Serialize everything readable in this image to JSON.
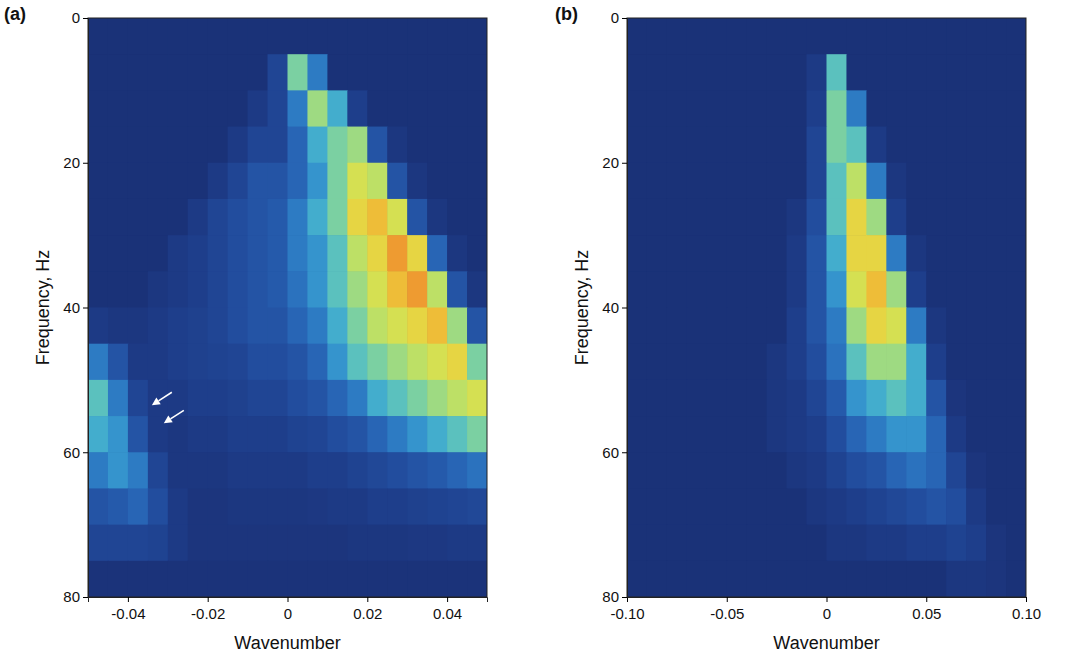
{
  "chart_data": [
    {
      "type": "heatmap",
      "panel_label": "(a)",
      "x_label": "Wavenumber",
      "y_label": "Frequency, Hz",
      "xlim": [
        -0.05,
        0.05
      ],
      "ylim": [
        0,
        80
      ],
      "xticks": [
        -0.04,
        -0.02,
        0,
        0.02,
        0.04
      ],
      "yticks": [
        0,
        20,
        40,
        60,
        80
      ],
      "x_edges": [
        -0.05,
        -0.045,
        -0.04,
        -0.035,
        -0.03,
        -0.025,
        -0.02,
        -0.015,
        -0.01,
        -0.005,
        0,
        0.005,
        0.01,
        0.015,
        0.02,
        0.025,
        0.03,
        0.035,
        0.04,
        0.045,
        0.05
      ],
      "y_edges": [
        0,
        5,
        10,
        15,
        20,
        25,
        30,
        35,
        40,
        45,
        50,
        55,
        60,
        65,
        70,
        75,
        80
      ],
      "zlim": [
        0,
        1
      ],
      "z": [
        [
          0.05,
          0.05,
          0.05,
          0.05,
          0.05,
          0.05,
          0.05,
          0.05,
          0.05,
          0.05,
          0.05,
          0.05,
          0.05,
          0.05,
          0.05,
          0.05,
          0.05,
          0.05,
          0.05,
          0.05
        ],
        [
          0.05,
          0.05,
          0.05,
          0.05,
          0.05,
          0.05,
          0.05,
          0.05,
          0.05,
          0.15,
          0.5,
          0.3,
          0.05,
          0.05,
          0.05,
          0.05,
          0.05,
          0.05,
          0.05,
          0.05
        ],
        [
          0.05,
          0.05,
          0.05,
          0.05,
          0.05,
          0.05,
          0.05,
          0.05,
          0.1,
          0.15,
          0.3,
          0.55,
          0.4,
          0.12,
          0.05,
          0.05,
          0.05,
          0.05,
          0.05,
          0.05
        ],
        [
          0.05,
          0.05,
          0.05,
          0.05,
          0.05,
          0.05,
          0.05,
          0.1,
          0.15,
          0.15,
          0.25,
          0.4,
          0.5,
          0.55,
          0.2,
          0.08,
          0.05,
          0.05,
          0.05,
          0.05
        ],
        [
          0.05,
          0.05,
          0.05,
          0.05,
          0.05,
          0.05,
          0.1,
          0.15,
          0.2,
          0.2,
          0.25,
          0.35,
          0.5,
          0.65,
          0.6,
          0.2,
          0.08,
          0.05,
          0.05,
          0.05
        ],
        [
          0.05,
          0.05,
          0.05,
          0.05,
          0.05,
          0.1,
          0.15,
          0.18,
          0.2,
          0.22,
          0.3,
          0.4,
          0.5,
          0.7,
          0.75,
          0.65,
          0.2,
          0.08,
          0.05,
          0.05
        ],
        [
          0.05,
          0.05,
          0.05,
          0.05,
          0.1,
          0.12,
          0.15,
          0.18,
          0.2,
          0.22,
          0.3,
          0.35,
          0.45,
          0.6,
          0.7,
          0.8,
          0.7,
          0.25,
          0.08,
          0.05
        ],
        [
          0.05,
          0.05,
          0.05,
          0.08,
          0.1,
          0.12,
          0.15,
          0.18,
          0.2,
          0.22,
          0.28,
          0.35,
          0.45,
          0.55,
          0.65,
          0.75,
          0.8,
          0.6,
          0.2,
          0.08
        ],
        [
          0.1,
          0.08,
          0.08,
          0.1,
          0.12,
          0.13,
          0.15,
          0.18,
          0.2,
          0.2,
          0.25,
          0.3,
          0.4,
          0.5,
          0.6,
          0.65,
          0.7,
          0.75,
          0.55,
          0.2
        ],
        [
          0.3,
          0.2,
          0.1,
          0.1,
          0.12,
          0.13,
          0.14,
          0.15,
          0.18,
          0.18,
          0.2,
          0.25,
          0.35,
          0.45,
          0.5,
          0.55,
          0.6,
          0.65,
          0.7,
          0.5
        ],
        [
          0.45,
          0.3,
          0.15,
          0.1,
          0.1,
          0.12,
          0.12,
          0.13,
          0.15,
          0.15,
          0.18,
          0.2,
          0.25,
          0.3,
          0.4,
          0.45,
          0.5,
          0.55,
          0.6,
          0.65
        ],
        [
          0.4,
          0.35,
          0.2,
          0.1,
          0.08,
          0.1,
          0.1,
          0.12,
          0.12,
          0.12,
          0.14,
          0.15,
          0.18,
          0.2,
          0.25,
          0.3,
          0.35,
          0.4,
          0.45,
          0.5
        ],
        [
          0.3,
          0.35,
          0.3,
          0.15,
          0.08,
          0.08,
          0.08,
          0.1,
          0.1,
          0.1,
          0.1,
          0.12,
          0.12,
          0.14,
          0.16,
          0.18,
          0.2,
          0.22,
          0.25,
          0.28
        ],
        [
          0.2,
          0.22,
          0.25,
          0.18,
          0.1,
          0.07,
          0.07,
          0.08,
          0.08,
          0.08,
          0.08,
          0.09,
          0.1,
          0.1,
          0.12,
          0.12,
          0.13,
          0.14,
          0.15,
          0.16
        ],
        [
          0.15,
          0.15,
          0.15,
          0.14,
          0.1,
          0.07,
          0.07,
          0.07,
          0.07,
          0.07,
          0.07,
          0.07,
          0.07,
          0.08,
          0.08,
          0.08,
          0.09,
          0.09,
          0.1,
          0.1
        ],
        [
          0.06,
          0.06,
          0.06,
          0.06,
          0.06,
          0.06,
          0.06,
          0.06,
          0.06,
          0.06,
          0.06,
          0.06,
          0.06,
          0.06,
          0.06,
          0.06,
          0.06,
          0.06,
          0.06,
          0.06
        ]
      ],
      "arrows": [
        {
          "x": -0.034,
          "y": 53.5
        },
        {
          "x": -0.031,
          "y": 56
        }
      ]
    },
    {
      "type": "heatmap",
      "panel_label": "(b)",
      "x_label": "Wavenumber",
      "y_label": "Frequency, Hz",
      "xlim": [
        -0.1,
        0.1
      ],
      "ylim": [
        0,
        80
      ],
      "xticks": [
        {
          "value": -0.1,
          "label": "-0.10"
        },
        -0.05,
        0,
        0.05,
        {
          "value": 0.1,
          "label": "0.10"
        }
      ],
      "yticks": [
        0,
        20,
        40,
        60,
        80
      ],
      "x_edges": [
        -0.1,
        -0.09,
        -0.08,
        -0.07,
        -0.06,
        -0.05,
        -0.04,
        -0.03,
        -0.02,
        -0.01,
        0,
        0.01,
        0.02,
        0.03,
        0.04,
        0.05,
        0.06,
        0.07,
        0.08,
        0.09,
        0.1
      ],
      "y_edges": [
        0,
        5,
        10,
        15,
        20,
        25,
        30,
        35,
        40,
        45,
        50,
        55,
        60,
        65,
        70,
        75,
        80
      ],
      "zlim": [
        0,
        1
      ],
      "z": [
        [
          0.05,
          0.05,
          0.05,
          0.05,
          0.05,
          0.05,
          0.05,
          0.05,
          0.05,
          0.05,
          0.05,
          0.05,
          0.05,
          0.05,
          0.05,
          0.05,
          0.05,
          0.05,
          0.05,
          0.05
        ],
        [
          0.05,
          0.05,
          0.05,
          0.05,
          0.05,
          0.05,
          0.05,
          0.05,
          0.05,
          0.1,
          0.45,
          0.05,
          0.05,
          0.05,
          0.05,
          0.05,
          0.05,
          0.05,
          0.05,
          0.05
        ],
        [
          0.05,
          0.05,
          0.05,
          0.05,
          0.05,
          0.05,
          0.05,
          0.05,
          0.05,
          0.12,
          0.5,
          0.3,
          0.05,
          0.05,
          0.05,
          0.05,
          0.05,
          0.05,
          0.05,
          0.05
        ],
        [
          0.05,
          0.05,
          0.05,
          0.05,
          0.05,
          0.05,
          0.05,
          0.05,
          0.05,
          0.15,
          0.5,
          0.45,
          0.1,
          0.05,
          0.05,
          0.05,
          0.05,
          0.05,
          0.05,
          0.05
        ],
        [
          0.05,
          0.05,
          0.05,
          0.05,
          0.05,
          0.05,
          0.05,
          0.05,
          0.05,
          0.15,
          0.45,
          0.6,
          0.3,
          0.08,
          0.05,
          0.05,
          0.05,
          0.05,
          0.05,
          0.05
        ],
        [
          0.05,
          0.05,
          0.05,
          0.05,
          0.05,
          0.05,
          0.05,
          0.05,
          0.08,
          0.18,
          0.45,
          0.7,
          0.55,
          0.12,
          0.05,
          0.05,
          0.05,
          0.05,
          0.05,
          0.05
        ],
        [
          0.05,
          0.05,
          0.05,
          0.05,
          0.05,
          0.05,
          0.05,
          0.05,
          0.1,
          0.2,
          0.4,
          0.7,
          0.7,
          0.3,
          0.08,
          0.05,
          0.05,
          0.05,
          0.05,
          0.05
        ],
        [
          0.05,
          0.05,
          0.05,
          0.05,
          0.05,
          0.05,
          0.05,
          0.05,
          0.1,
          0.2,
          0.35,
          0.65,
          0.75,
          0.55,
          0.12,
          0.05,
          0.05,
          0.05,
          0.05,
          0.05
        ],
        [
          0.05,
          0.05,
          0.05,
          0.05,
          0.05,
          0.05,
          0.05,
          0.05,
          0.12,
          0.2,
          0.3,
          0.55,
          0.7,
          0.65,
          0.3,
          0.08,
          0.05,
          0.05,
          0.05,
          0.05
        ],
        [
          0.05,
          0.05,
          0.05,
          0.05,
          0.05,
          0.05,
          0.05,
          0.08,
          0.12,
          0.18,
          0.28,
          0.45,
          0.55,
          0.55,
          0.4,
          0.12,
          0.05,
          0.05,
          0.05,
          0.05
        ],
        [
          0.05,
          0.05,
          0.05,
          0.05,
          0.05,
          0.05,
          0.05,
          0.08,
          0.1,
          0.15,
          0.22,
          0.35,
          0.4,
          0.45,
          0.4,
          0.2,
          0.07,
          0.05,
          0.05,
          0.05
        ],
        [
          0.05,
          0.05,
          0.05,
          0.05,
          0.05,
          0.05,
          0.05,
          0.08,
          0.1,
          0.12,
          0.18,
          0.25,
          0.3,
          0.35,
          0.35,
          0.25,
          0.1,
          0.05,
          0.05,
          0.05
        ],
        [
          0.05,
          0.05,
          0.05,
          0.05,
          0.05,
          0.05,
          0.05,
          0.05,
          0.08,
          0.1,
          0.14,
          0.18,
          0.2,
          0.25,
          0.28,
          0.25,
          0.15,
          0.07,
          0.05,
          0.05
        ],
        [
          0.05,
          0.05,
          0.05,
          0.05,
          0.05,
          0.05,
          0.05,
          0.05,
          0.05,
          0.08,
          0.1,
          0.12,
          0.14,
          0.16,
          0.18,
          0.2,
          0.18,
          0.1,
          0.05,
          0.05
        ],
        [
          0.05,
          0.05,
          0.05,
          0.05,
          0.05,
          0.05,
          0.05,
          0.05,
          0.05,
          0.05,
          0.08,
          0.08,
          0.1,
          0.1,
          0.12,
          0.12,
          0.14,
          0.12,
          0.07,
          0.05
        ],
        [
          0.05,
          0.05,
          0.05,
          0.05,
          0.05,
          0.05,
          0.05,
          0.05,
          0.05,
          0.05,
          0.05,
          0.05,
          0.05,
          0.05,
          0.05,
          0.05,
          0.08,
          0.08,
          0.07,
          0.05
        ]
      ]
    }
  ]
}
